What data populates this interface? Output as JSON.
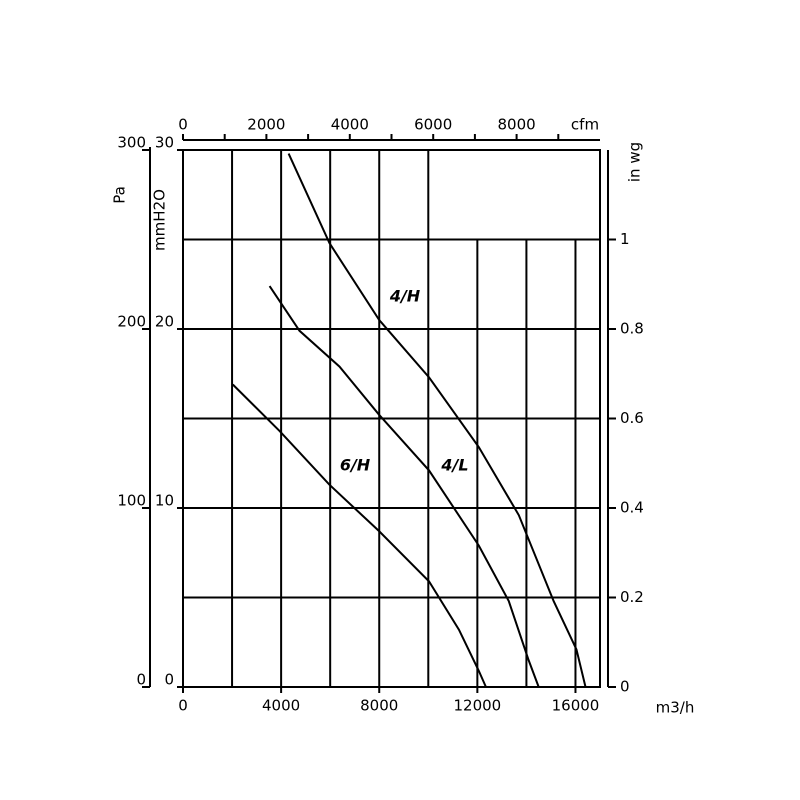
{
  "chart_data": {
    "type": "line",
    "x_label": "m3/h",
    "y_label": "Pa",
    "xlim": [
      0,
      17000
    ],
    "xticks": [
      0,
      4000,
      8000,
      12000,
      16000
    ],
    "xgrid": [
      2000,
      4000,
      6000,
      8000,
      10000,
      12000,
      14000,
      16000
    ],
    "ylim": [
      0,
      300
    ],
    "yticks": [
      0,
      100,
      200,
      300
    ],
    "y_mm_label": "mmH2O",
    "y_mm_lim": [
      0,
      30
    ],
    "y_mm_ticks": [
      0,
      10,
      20,
      30
    ],
    "y2_label": "in wg",
    "y2lim": [
      0,
      1.2
    ],
    "y2ticks": [
      0,
      0.2,
      0.4,
      0.6,
      0.8,
      1
    ],
    "x2_label": "cfm",
    "x2lim": [
      0,
      10000
    ],
    "x2ticks": [
      0,
      2000,
      4000,
      6000,
      8000
    ],
    "grid": true,
    "series": [
      {
        "name": "4/H",
        "color": "#000000",
        "x": [
          4305,
          5970,
          8000,
          10030,
          12060,
          13690,
          15110,
          16040,
          16410
        ],
        "values": [
          298,
          248,
          205,
          173,
          134,
          96,
          48,
          21,
          0
        ]
      },
      {
        "name": "4/L",
        "color": "#000000",
        "x": [
          3530,
          4750,
          6380,
          8000,
          10030,
          12060,
          13280,
          14090,
          14500
        ],
        "values": [
          224,
          199,
          179,
          152,
          121,
          79,
          48,
          15,
          0
        ]
      },
      {
        "name": "6/H",
        "color": "#000000",
        "x": [
          2030,
          3940,
          5970,
          8000,
          10030,
          11250,
          12060,
          12350
        ],
        "values": [
          169,
          143,
          113,
          87,
          59,
          32,
          9,
          0
        ]
      }
    ]
  }
}
